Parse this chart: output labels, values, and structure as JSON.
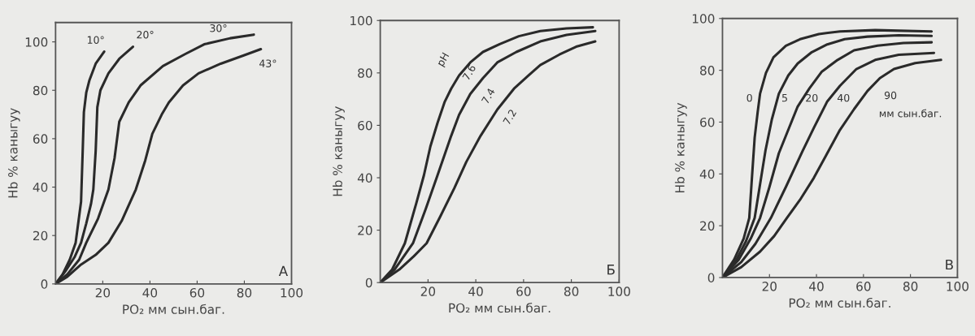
{
  "chart_data": [
    {
      "type": "line",
      "xlabel": "PO₂ мм сын.баг.",
      "ylabel": "Hb % каныгуу",
      "xlim": [
        0,
        100
      ],
      "ylim": [
        0,
        108
      ],
      "xticks": [
        20,
        40,
        60,
        80,
        100
      ],
      "yticks": [
        0,
        20,
        40,
        60,
        80,
        100
      ],
      "grid": false,
      "legend": false,
      "series": [
        {
          "color": "#2a2a2a",
          "x": [
            0,
            3,
            6,
            8.5,
            10,
            10.8,
            11.5,
            12,
            13,
            14.3,
            17,
            20.6
          ],
          "values": [
            0,
            4,
            10,
            17,
            28,
            34,
            55,
            71,
            79,
            84,
            91,
            96
          ]
        },
        {
          "color": "#2a2a2a",
          "x": [
            0,
            4,
            8,
            10.8,
            13,
            15,
            16,
            17,
            17.7,
            19,
            22.4,
            27,
            32.8
          ],
          "values": [
            0,
            5,
            11,
            17,
            25,
            33,
            39,
            55,
            73,
            80,
            87,
            93,
            98
          ]
        },
        {
          "color": "#2a2a2a",
          "x": [
            0,
            5,
            10,
            13,
            18,
            22.4,
            25,
            27,
            31,
            36,
            45.5,
            55,
            63,
            74,
            84
          ],
          "values": [
            0,
            4,
            10,
            17,
            27,
            39,
            52,
            67,
            75,
            82,
            90,
            95,
            99,
            101.5,
            103
          ]
        },
        {
          "color": "#2a2a2a",
          "x": [
            0,
            5,
            10.8,
            17,
            22.4,
            28,
            34,
            38,
            41,
            45,
            48,
            54,
            60.6,
            70,
            80,
            87
          ],
          "values": [
            0,
            3,
            8,
            12,
            17,
            26,
            39,
            51,
            62,
            70,
            75,
            82,
            87,
            91,
            94.5,
            97
          ]
        }
      ],
      "annotations": [
        "10°",
        "20°",
        "30°",
        "43°",
        "А"
      ]
    },
    {
      "type": "line",
      "xlabel": "PO₂ мм сын.баг.",
      "ylabel": "Hb % каныгуу",
      "xlim": [
        0,
        100
      ],
      "ylim": [
        0,
        100
      ],
      "xticks": [
        20,
        40,
        60,
        80,
        100
      ],
      "yticks": [
        0,
        20,
        40,
        60,
        80,
        100
      ],
      "grid": false,
      "legend": false,
      "series": [
        {
          "color": "#2a2a2a",
          "x": [
            0,
            5,
            10.3,
            15,
            18.3,
            21,
            24,
            27,
            29.7,
            33,
            37.7,
            43,
            50,
            58,
            67,
            78,
            89
          ],
          "values": [
            0,
            5,
            15,
            30,
            41,
            52,
            61,
            69,
            74,
            79,
            84,
            88,
            91,
            94,
            96,
            97,
            97.4
          ]
        },
        {
          "color": "#2a2a2a",
          "x": [
            0,
            6,
            13.7,
            19,
            24,
            29.7,
            33,
            37.7,
            43,
            49,
            57,
            67,
            78,
            90
          ],
          "values": [
            0,
            5,
            15,
            28,
            41,
            56,
            64,
            72,
            78,
            84,
            88,
            92,
            94.5,
            96
          ]
        },
        {
          "color": "#2a2a2a",
          "x": [
            0,
            8,
            14,
            19.4,
            25,
            31,
            36,
            42,
            49,
            56,
            62,
            67,
            75,
            82,
            90
          ],
          "values": [
            0,
            5,
            10,
            15,
            25,
            36,
            46,
            56,
            66,
            74,
            79,
            83,
            87,
            90,
            92
          ]
        }
      ],
      "annotations": [
        "pH",
        "7.6",
        "7.4",
        "7.2",
        "Б"
      ]
    },
    {
      "type": "line",
      "xlabel": "PO₂ мм сын.баг.",
      "ylabel": "Hb % каныгуу",
      "xlim": [
        0,
        100
      ],
      "ylim": [
        0,
        100
      ],
      "xticks": [
        20,
        40,
        60,
        80,
        100
      ],
      "yticks": [
        0,
        20,
        40,
        60,
        80,
        100
      ],
      "grid": false,
      "legend": false,
      "series": [
        {
          "color": "#2a2a2a",
          "x": [
            0,
            5,
            9,
            11.4,
            12.5,
            13.7,
            15,
            16,
            18.5,
            21.7,
            27,
            33,
            41,
            50,
            65,
            89
          ],
          "values": [
            0,
            7,
            15,
            23,
            38,
            54,
            64,
            71,
            79,
            85,
            89.5,
            92,
            94,
            95,
            95.5,
            95
          ]
        },
        {
          "color": "#2a2a2a",
          "x": [
            0,
            6,
            10,
            13.7,
            16,
            18.3,
            21,
            24,
            28,
            32,
            38,
            44.6,
            52,
            61.7,
            75,
            89
          ],
          "values": [
            0,
            7,
            14,
            23,
            36,
            49,
            61,
            71,
            78,
            82.6,
            87,
            90,
            92,
            93,
            93.5,
            93.3
          ]
        },
        {
          "color": "#2a2a2a",
          "x": [
            0,
            7,
            12,
            16,
            20,
            24,
            28,
            32,
            37,
            42.3,
            49,
            56,
            66,
            77,
            89
          ],
          "values": [
            0,
            7,
            15,
            23,
            35,
            48,
            57,
            66,
            73,
            79.5,
            84,
            87.7,
            89.5,
            90.5,
            90.8
          ]
        },
        {
          "color": "#2a2a2a",
          "x": [
            0,
            8,
            14,
            20.6,
            27,
            34,
            39,
            44.6,
            50,
            57,
            65,
            75,
            90
          ],
          "values": [
            0,
            6,
            13,
            23,
            35,
            48.7,
            58,
            68,
            74,
            80.5,
            84,
            86,
            86.7
          ]
        },
        {
          "color": "#2a2a2a",
          "x": [
            0,
            8,
            16,
            22,
            27.4,
            33,
            38.9,
            44,
            50,
            56,
            61.7,
            67,
            73,
            82,
            93
          ],
          "values": [
            0,
            4,
            10,
            16,
            23,
            30,
            38.5,
            47,
            57,
            65,
            72,
            77,
            80.5,
            82.8,
            84
          ]
        }
      ],
      "annotations": [
        "0",
        "5",
        "20",
        "40",
        "90",
        "мм сын.баг.",
        "В"
      ]
    }
  ]
}
